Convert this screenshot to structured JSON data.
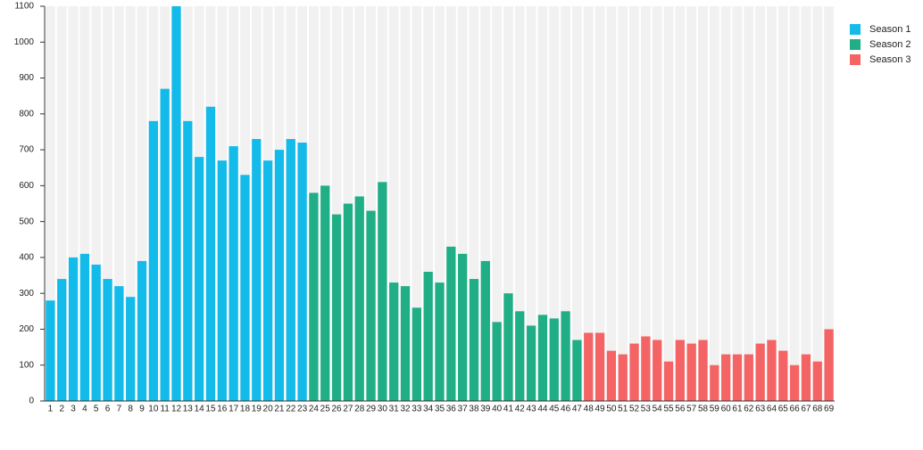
{
  "chart_data": {
    "type": "bar",
    "categories": [
      1,
      2,
      3,
      4,
      5,
      6,
      7,
      8,
      9,
      10,
      11,
      12,
      13,
      14,
      15,
      16,
      17,
      18,
      19,
      20,
      21,
      22,
      23,
      24,
      25,
      26,
      27,
      28,
      29,
      30,
      31,
      32,
      33,
      34,
      35,
      36,
      37,
      38,
      39,
      40,
      41,
      42,
      43,
      44,
      45,
      46,
      47,
      48,
      49,
      50,
      51,
      52,
      53,
      54,
      55,
      56,
      57,
      58,
      59,
      60,
      61,
      62,
      63,
      64,
      65,
      66,
      67,
      68,
      69
    ],
    "series": [
      {
        "name": "Season 1",
        "color": "#12bbea",
        "values": [
          280,
          340,
          400,
          410,
          380,
          340,
          320,
          290,
          390,
          780,
          870,
          1100,
          780,
          680,
          820,
          670,
          710,
          630,
          730,
          670,
          700,
          730,
          720,
          null,
          null,
          null,
          null,
          null,
          null,
          null,
          null,
          null,
          null,
          null,
          null,
          null,
          null,
          null,
          null,
          null,
          null,
          null,
          null,
          null,
          null,
          null,
          null,
          null,
          null,
          null,
          null,
          null,
          null,
          null,
          null,
          null,
          null,
          null,
          null,
          null,
          null,
          null,
          null,
          null,
          null,
          null,
          null,
          null,
          null
        ]
      },
      {
        "name": "Season 2",
        "color": "#1fae85",
        "values": [
          null,
          null,
          null,
          null,
          null,
          null,
          null,
          null,
          null,
          null,
          null,
          null,
          null,
          null,
          null,
          null,
          null,
          null,
          null,
          null,
          null,
          null,
          null,
          580,
          600,
          520,
          550,
          570,
          530,
          610,
          330,
          320,
          260,
          360,
          330,
          430,
          410,
          340,
          390,
          220,
          300,
          250,
          210,
          240,
          230,
          250,
          170,
          null,
          null,
          null,
          null,
          null,
          null,
          null,
          null,
          null,
          null,
          null,
          null,
          null,
          null,
          null,
          null,
          null,
          null,
          null,
          null,
          null,
          null
        ]
      },
      {
        "name": "Season 3",
        "color": "#f46465",
        "values": [
          null,
          null,
          null,
          null,
          null,
          null,
          null,
          null,
          null,
          null,
          null,
          null,
          null,
          null,
          null,
          null,
          null,
          null,
          null,
          null,
          null,
          null,
          null,
          null,
          null,
          null,
          null,
          null,
          null,
          null,
          null,
          null,
          null,
          null,
          null,
          null,
          null,
          null,
          null,
          null,
          null,
          null,
          null,
          null,
          null,
          null,
          null,
          190,
          190,
          140,
          130,
          160,
          180,
          170,
          110,
          170,
          160,
          170,
          100,
          130,
          130,
          130,
          160,
          170,
          140,
          100,
          130,
          110,
          200
        ]
      }
    ],
    "ylim": [
      0,
      1100
    ],
    "yticks": [
      0,
      100,
      200,
      300,
      400,
      500,
      600,
      700,
      800,
      900,
      1000,
      1100
    ],
    "legend": "top-right"
  }
}
